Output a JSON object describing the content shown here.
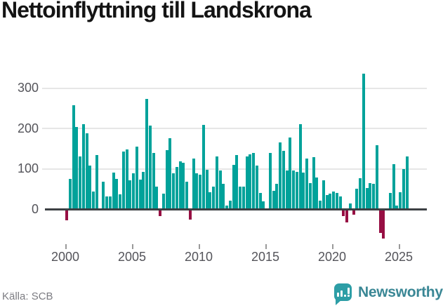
{
  "title": "Nettoinflyttning till Landskrona",
  "source_label": "Källa: SCB",
  "brand": "Newsworthy",
  "colors": {
    "positive_bar": "#00a29a",
    "negative_bar": "#970f43",
    "axis_line": "#3d4144",
    "gridline": "#e6e6e6",
    "tick_label": "#54545a",
    "brand_teal": "#2d9ea6"
  },
  "chart_data": {
    "type": "bar",
    "title": "Nettoinflyttning till Landskrona",
    "xlabel": "",
    "ylabel": "",
    "y_ticks": [
      0,
      100,
      200,
      300
    ],
    "x_ticks": [
      2000,
      2005,
      2010,
      2015,
      2020,
      2025
    ],
    "ylim": [
      -80,
      350
    ],
    "grid": "horizontal",
    "legend": "none",
    "frequency": "quarterly",
    "start": "2000-Q1",
    "end": "2025-Q3",
    "year_order": [
      "2000",
      "2001",
      "2002",
      "2003",
      "2004",
      "2005",
      "2006",
      "2007",
      "2008",
      "2009",
      "2010",
      "2011",
      "2012",
      "2013",
      "2014",
      "2015",
      "2016",
      "2017",
      "2018",
      "2019",
      "2020",
      "2021",
      "2022",
      "2023",
      "2024",
      "2025"
    ],
    "values_by_year": {
      "2000": [
        -25,
        75,
        258,
        204
      ],
      "2001": [
        130,
        210,
        187,
        108
      ],
      "2002": [
        44,
        134,
        0,
        67
      ],
      "2003": [
        32,
        31,
        90,
        75
      ],
      "2004": [
        36,
        143,
        148,
        72
      ],
      "2005": [
        88,
        155,
        73,
        93
      ],
      "2006": [
        273,
        207,
        140,
        56
      ],
      "2007": [
        -14,
        38,
        146,
        176
      ],
      "2008": [
        88,
        104,
        118,
        114
      ],
      "2009": [
        68,
        -24,
        126,
        89
      ],
      "2010": [
        86,
        209,
        98,
        41
      ],
      "2011": [
        56,
        131,
        95,
        63
      ],
      "2012": [
        8,
        21,
        110,
        134
      ],
      "2013": [
        56,
        56,
        131,
        136
      ],
      "2014": [
        139,
        107,
        40,
        20
      ],
      "2015": [
        0,
        140,
        45,
        62
      ],
      "2016": [
        166,
        144,
        95,
        178
      ],
      "2017": [
        96,
        93,
        210,
        90
      ],
      "2018": [
        126,
        65,
        128,
        79
      ],
      "2019": [
        21,
        72,
        35,
        38
      ],
      "2020": [
        44,
        40,
        32,
        -15
      ],
      "2021": [
        -31,
        14,
        -11,
        50
      ],
      "2022": [
        76,
        335,
        52,
        64
      ],
      "2023": [
        62,
        159,
        -57,
        -71
      ],
      "2024": [
        0,
        40,
        111,
        8
      ],
      "2025": [
        42,
        99,
        130
      ]
    }
  }
}
